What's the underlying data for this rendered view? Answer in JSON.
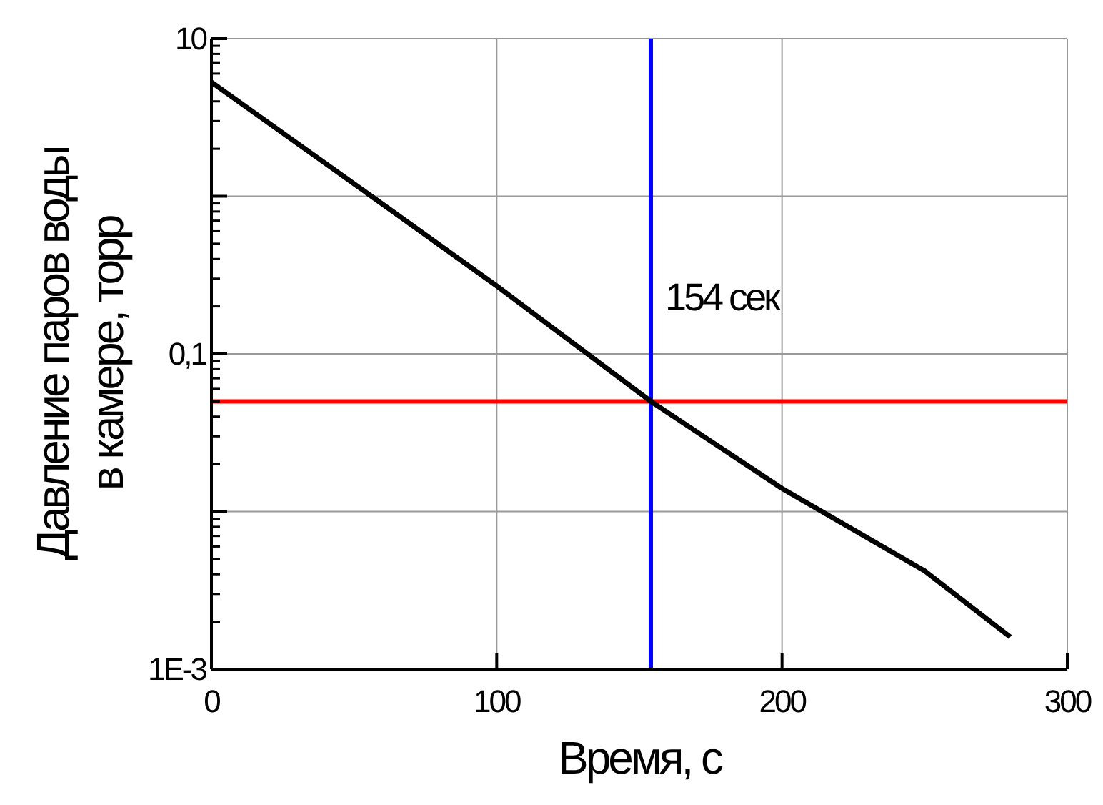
{
  "chart_data": {
    "type": "line",
    "xlabel": "Время, с",
    "ylabel": "Давление паров воды\nв камере, торр",
    "x": [
      0,
      50,
      100,
      154,
      200,
      250,
      280
    ],
    "series": [
      {
        "color": "#000000",
        "values": [
          5.3,
          1.2,
          0.27,
          0.05,
          0.014,
          0.0042,
          0.0016
        ]
      }
    ],
    "xlim": [
      0,
      300
    ],
    "xticks": [
      0,
      100,
      200,
      300
    ],
    "ylim": [
      0.001,
      10
    ],
    "yticks": [
      10,
      {
        "value": 1,
        "label": null
      },
      {
        "value": 0.1,
        "label": "0,1"
      },
      {
        "value": 0.01,
        "label": null
      },
      {
        "value": 0.001,
        "label": "1E-3"
      }
    ],
    "log": "y",
    "grid": true,
    "marker": "none",
    "line_style": "solid",
    "ref_lines": [
      {
        "axis": "y",
        "value": 0.05,
        "color": "#ff0000"
      },
      {
        "axis": "x",
        "value": 154,
        "label": "154 сек",
        "color": "#0000ff"
      }
    ]
  }
}
